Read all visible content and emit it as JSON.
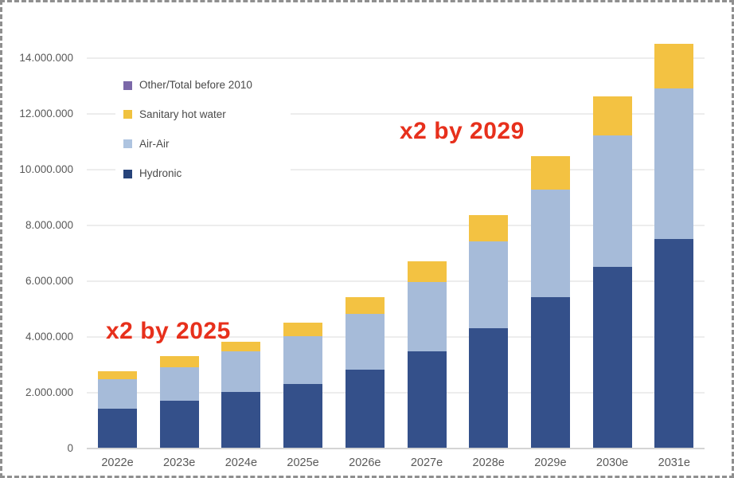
{
  "frame": {
    "background": "#ffffff",
    "border_color": "#8f8f8f",
    "border_style": "dashed"
  },
  "chart_data": {
    "type": "bar",
    "stacked": true,
    "title": "",
    "xlabel": "",
    "ylabel": "",
    "grid": true,
    "categories": [
      "2022e",
      "2023e",
      "2024e",
      "2025e",
      "2026e",
      "2027e",
      "2028e",
      "2029e",
      "2030e",
      "2031e"
    ],
    "series": [
      {
        "name": "Hydronic",
        "color": "#34508a",
        "values": [
          1400000,
          1700000,
          2000000,
          2300000,
          2800000,
          3450000,
          4300000,
          5400000,
          6500000,
          7500000
        ]
      },
      {
        "name": "Air-Air",
        "color": "#a6bbd9",
        "values": [
          1050000,
          1200000,
          1450000,
          1700000,
          2000000,
          2500000,
          3100000,
          3850000,
          4700000,
          5400000
        ]
      },
      {
        "name": "Sanitary hot water",
        "color": "#f3c242",
        "values": [
          300000,
          400000,
          350000,
          500000,
          600000,
          750000,
          950000,
          1200000,
          1400000,
          1600000
        ]
      },
      {
        "name": "Other/Total before 2010",
        "color": "#7b68a8",
        "values": [
          0,
          0,
          0,
          0,
          0,
          0,
          0,
          0,
          0,
          0
        ]
      }
    ],
    "totals": [
      2750000,
      3300000,
      3800000,
      4500000,
      5400000,
      6700000,
      8350000,
      10450000,
      12600000,
      14500000
    ],
    "ylim": [
      0,
      14500000
    ],
    "yticks": {
      "values": [
        0,
        2000000,
        4000000,
        6000000,
        8000000,
        10000000,
        12000000,
        14000000
      ],
      "labels": [
        "0",
        "2.000.000",
        "4.000.000",
        "6.000.000",
        "8.000.000",
        "10.000.000",
        "12.000.000",
        "14.000.000"
      ]
    },
    "legend": {
      "position": "inside-top-left",
      "items": [
        {
          "label": "Other/Total before 2010",
          "color": "#7b68a8"
        },
        {
          "label": "Sanitary hot water",
          "color": "#f0c23f"
        },
        {
          "label": "Air-Air",
          "color": "#aec4e0"
        },
        {
          "label": "Hydronic",
          "color": "#27437a"
        }
      ]
    },
    "annotations": [
      {
        "text": "x2 by 2025",
        "color": "#e7301c"
      },
      {
        "text": "x2 by 2029",
        "color": "#e7301c"
      }
    ],
    "colors": {
      "axis_text": "#595959",
      "gridline": "#ededed",
      "axis_line": "#d4d4d4",
      "annotation_red": "#e7301c"
    }
  }
}
